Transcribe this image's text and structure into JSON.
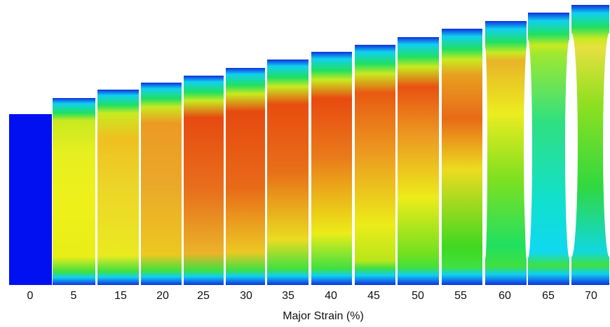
{
  "specimens": [
    {
      "label": "0"
    },
    {
      "label": "5"
    },
    {
      "label": "15"
    },
    {
      "label": "20"
    },
    {
      "label": "25"
    },
    {
      "label": "30"
    },
    {
      "label": "35"
    },
    {
      "label": "40"
    },
    {
      "label": "45"
    },
    {
      "label": "50"
    },
    {
      "label": "55"
    },
    {
      "label": "60"
    },
    {
      "label": "65"
    },
    {
      "label": "70"
    }
  ],
  "axis_label": "Major Strain (%)"
}
